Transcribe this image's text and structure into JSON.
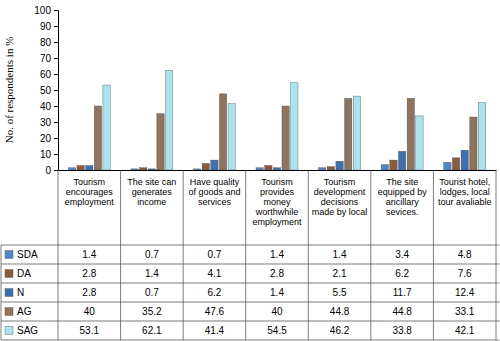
{
  "chart_data": {
    "type": "bar",
    "y_label": "No. of respondents in %",
    "categories": [
      "Tourism encourages employment",
      "The site can generates income",
      "Have quality of goods and services",
      "Tourism provides money worthwhile employment",
      "Tourism development decisions made by local",
      "The site equipped by ancillary sevices.",
      "Tourist hotel, lodges, local tour avaliable"
    ],
    "series": [
      {
        "name": "SDA",
        "color": "#4f86c6",
        "values": [
          1.4,
          0.7,
          0.7,
          1.4,
          1.4,
          3.4,
          4.8
        ]
      },
      {
        "name": "DA",
        "color": "#8b5a3c",
        "values": [
          2.8,
          1.4,
          4.1,
          2.8,
          2.1,
          6.2,
          7.6
        ]
      },
      {
        "name": "N",
        "color": "#3d6fb3",
        "values": [
          2.8,
          0.7,
          6.2,
          1.4,
          5.5,
          11.7,
          12.4
        ]
      },
      {
        "name": "AG",
        "color": "#8f735c",
        "values": [
          40,
          35.2,
          47.6,
          40,
          44.8,
          44.8,
          33.1
        ]
      },
      {
        "name": "SAG",
        "color": "#a9e4ee",
        "values": [
          53.1,
          62.1,
          41.4,
          54.5,
          46.2,
          33.8,
          42.1
        ]
      }
    ],
    "ylim": [
      0,
      100
    ],
    "yticks": [
      0,
      10,
      20,
      30,
      40,
      50,
      60,
      70,
      80,
      90,
      100
    ],
    "grid": false
  }
}
